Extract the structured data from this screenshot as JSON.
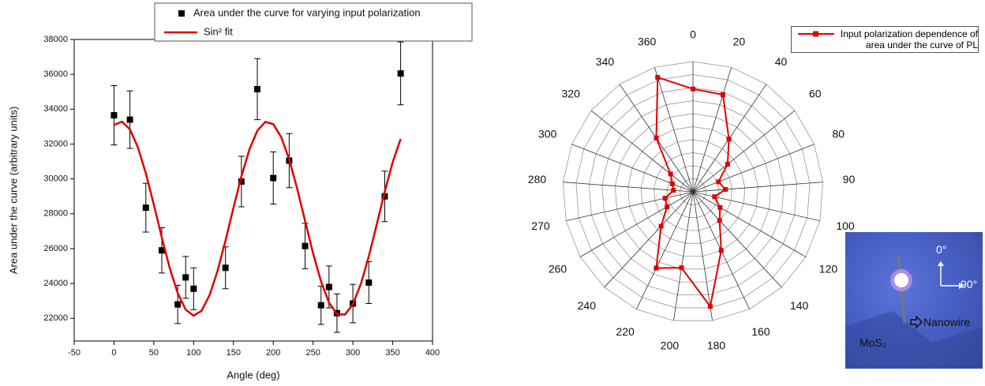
{
  "chart_data": [
    {
      "type": "scatter",
      "xlabel": "Angle (deg)",
      "ylabel": "Area under the curve (arbitrary units)",
      "xlim": [
        -50,
        400
      ],
      "xticks": [
        -50,
        0,
        50,
        100,
        150,
        200,
        250,
        300,
        350,
        400
      ],
      "ylim": [
        20700,
        38000
      ],
      "yticks": [
        22000,
        24000,
        26000,
        28000,
        30000,
        32000,
        34000,
        36000,
        38000
      ],
      "series": [
        {
          "name": "Area under the curve for varying input polarization",
          "color": "#000000",
          "mode": "markers",
          "x": [
            0,
            20,
            40,
            60,
            80,
            90,
            100,
            140,
            160,
            180,
            200,
            220,
            240,
            260,
            270,
            280,
            300,
            320,
            340,
            360
          ],
          "values": [
            33650,
            33400,
            28350,
            25900,
            22800,
            24350,
            23700,
            24900,
            29850,
            35150,
            30050,
            31050,
            26150,
            22750,
            23800,
            22300,
            22850,
            24050,
            29000,
            36050
          ],
          "errors": [
            1700,
            1650,
            1400,
            1300,
            1100,
            1200,
            1200,
            1200,
            1450,
            1750,
            1500,
            1550,
            1300,
            1100,
            1200,
            1100,
            1100,
            1200,
            1450,
            1800
          ]
        },
        {
          "name": "Sin² fit",
          "color": "#e00000",
          "mode": "line",
          "x": [
            0,
            10,
            20,
            30,
            40,
            50,
            60,
            70,
            80,
            90,
            100,
            110,
            120,
            130,
            140,
            150,
            160,
            170,
            180,
            190,
            200,
            210,
            220,
            230,
            240,
            250,
            260,
            270,
            280,
            290,
            300,
            310,
            320,
            330,
            340,
            350,
            360
          ],
          "values": [
            33095,
            33287,
            32843,
            31815,
            30318,
            28528,
            26645,
            24882,
            23448,
            22501,
            22150,
            22438,
            23327,
            24721,
            26460,
            28334,
            30151,
            31684,
            32765,
            33271,
            33143,
            32396,
            31116,
            29448,
            27583,
            25735,
            24114,
            22905,
            22247,
            22215,
            22812,
            23972,
            25559,
            27394,
            29268,
            30964,
            32291
          ]
        }
      ]
    },
    {
      "type": "polar",
      "categories": [
        "0",
        "20",
        "40",
        "60",
        "80",
        "90",
        "100",
        "120",
        "140",
        "160",
        "180",
        "200",
        "220",
        "240",
        "260",
        "270",
        "280",
        "300",
        "320",
        "340",
        "360"
      ],
      "rlim": [
        0,
        1
      ],
      "series": [
        {
          "name": "Input polarization dependence of area under the curve of PL",
          "color": "#e00000",
          "values": [
            0.79,
            0.78,
            0.49,
            0.34,
            0.21,
            0.25,
            0.17,
            0.24,
            0.3,
            0.5,
            0.89,
            0.59,
            0.65,
            0.36,
            0.23,
            0.22,
            0.15,
            0.17,
            0.22,
            0.5,
            0.92
          ]
        }
      ]
    }
  ],
  "inset": {
    "north_label": "0°",
    "east_label": "90°",
    "wire_label": "Nanowire",
    "material_label": "MoS₂"
  }
}
